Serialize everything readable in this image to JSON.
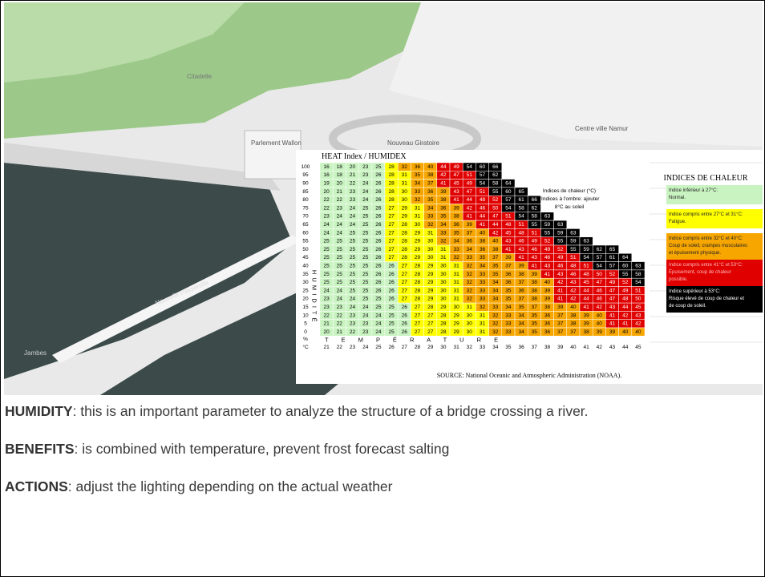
{
  "scene": {
    "labels": [
      "Citadelle",
      "Parlement Wallon",
      "Nouveau Giratoire",
      "Centre ville Namur",
      "Nouvelle Passerelle",
      "Jambes"
    ]
  },
  "heat_table": {
    "title": "HEAT Index / HUMIDEX",
    "humidity_unit": "%",
    "temperature_unit": "°C",
    "humidity_axis_label": "H U M I D I T É",
    "temperature_axis_label": "T E M P É R A T U R E",
    "temperatures": [
      21,
      22,
      23,
      24,
      25,
      26,
      27,
      28,
      29,
      30,
      31,
      32,
      33,
      34,
      35,
      36,
      37,
      38,
      39,
      40,
      41,
      42,
      43,
      44,
      45
    ],
    "rows": [
      {
        "humidity": 100,
        "values": [
          16,
          18,
          20,
          23,
          25,
          28,
          32,
          36,
          40,
          44,
          49,
          54,
          60,
          66
        ]
      },
      {
        "humidity": 95,
        "values": [
          16,
          18,
          21,
          23,
          26,
          28,
          31,
          35,
          38,
          42,
          47,
          51,
          57,
          62
        ]
      },
      {
        "humidity": 90,
        "values": [
          19,
          20,
          22,
          24,
          26,
          28,
          31,
          34,
          37,
          41,
          45,
          49,
          54,
          58,
          64
        ]
      },
      {
        "humidity": 85,
        "values": [
          20,
          21,
          23,
          24,
          26,
          28,
          30,
          33,
          36,
          39,
          43,
          47,
          51,
          55,
          60,
          65
        ]
      },
      {
        "humidity": 80,
        "values": [
          22,
          22,
          23,
          24,
          26,
          28,
          30,
          32,
          35,
          38,
          41,
          44,
          48,
          52,
          57,
          61,
          66
        ]
      },
      {
        "humidity": 75,
        "values": [
          22,
          23,
          24,
          25,
          26,
          27,
          29,
          31,
          34,
          36,
          39,
          42,
          46,
          50,
          54,
          58,
          62
        ]
      },
      {
        "humidity": 70,
        "values": [
          23,
          24,
          24,
          25,
          26,
          27,
          29,
          31,
          33,
          35,
          38,
          41,
          44,
          47,
          51,
          54,
          58,
          63
        ]
      },
      {
        "humidity": 65,
        "values": [
          24,
          24,
          24,
          25,
          26,
          27,
          28,
          30,
          32,
          34,
          36,
          39,
          41,
          44,
          48,
          51,
          55,
          59,
          63
        ]
      },
      {
        "humidity": 60,
        "values": [
          24,
          24,
          25,
          25,
          26,
          27,
          28,
          29,
          31,
          33,
          35,
          37,
          40,
          42,
          45,
          48,
          51,
          55,
          59,
          63
        ]
      },
      {
        "humidity": 55,
        "values": [
          25,
          25,
          25,
          25,
          26,
          27,
          28,
          29,
          30,
          32,
          34,
          36,
          38,
          40,
          43,
          46,
          49,
          52,
          55,
          59,
          63
        ]
      },
      {
        "humidity": 50,
        "values": [
          25,
          25,
          25,
          25,
          26,
          27,
          28,
          29,
          30,
          31,
          33,
          34,
          36,
          38,
          41,
          43,
          46,
          49,
          52,
          55,
          59,
          62,
          65
        ]
      },
      {
        "humidity": 45,
        "values": [
          25,
          25,
          25,
          25,
          26,
          27,
          28,
          29,
          30,
          31,
          32,
          33,
          35,
          37,
          39,
          41,
          43,
          46,
          49,
          51,
          54,
          57,
          61,
          64
        ]
      },
      {
        "humidity": 40,
        "values": [
          25,
          25,
          25,
          25,
          26,
          26,
          27,
          28,
          29,
          30,
          31,
          32,
          34,
          35,
          37,
          39,
          41,
          43,
          46,
          48,
          51,
          54,
          57,
          60,
          63
        ]
      },
      {
        "humidity": 35,
        "values": [
          25,
          25,
          25,
          25,
          26,
          26,
          27,
          28,
          29,
          30,
          31,
          32,
          33,
          35,
          36,
          38,
          39,
          41,
          43,
          46,
          48,
          50,
          52,
          55,
          58
        ]
      },
      {
        "humidity": 30,
        "values": [
          25,
          25,
          25,
          25,
          26,
          26,
          27,
          28,
          29,
          30,
          31,
          32,
          33,
          34,
          36,
          37,
          38,
          40,
          42,
          43,
          45,
          47,
          49,
          52,
          54
        ]
      },
      {
        "humidity": 25,
        "values": [
          24,
          24,
          25,
          25,
          26,
          26,
          27,
          28,
          29,
          30,
          31,
          32,
          33,
          34,
          35,
          36,
          38,
          39,
          41,
          42,
          44,
          46,
          47,
          49,
          51
        ]
      },
      {
        "humidity": 20,
        "values": [
          23,
          24,
          24,
          25,
          25,
          26,
          27,
          28,
          29,
          30,
          31,
          32,
          33,
          34,
          35,
          37,
          38,
          39,
          41,
          42,
          44,
          46,
          47,
          48,
          50
        ]
      },
      {
        "humidity": 15,
        "values": [
          23,
          23,
          24,
          24,
          25,
          25,
          26,
          27,
          28,
          29,
          30,
          31,
          32,
          33,
          34,
          35,
          37,
          38,
          39,
          40,
          41,
          42,
          43,
          44,
          45
        ]
      },
      {
        "humidity": 10,
        "values": [
          22,
          22,
          23,
          24,
          24,
          25,
          26,
          27,
          27,
          28,
          29,
          30,
          31,
          32,
          33,
          34,
          35,
          36,
          37,
          38,
          39,
          40,
          41,
          42,
          43
        ]
      },
      {
        "humidity": 5,
        "values": [
          21,
          22,
          23,
          23,
          24,
          25,
          26,
          27,
          27,
          28,
          29,
          30,
          31,
          32,
          33,
          34,
          35,
          36,
          37,
          38,
          39,
          40,
          41,
          41,
          42
        ]
      },
      {
        "humidity": 0,
        "values": [
          20,
          21,
          22,
          23,
          24,
          25,
          26,
          27,
          27,
          28,
          29,
          30,
          31,
          32,
          33,
          34,
          35,
          36,
          37,
          37,
          38,
          39,
          39,
          40,
          40
        ]
      }
    ],
    "note": [
      "Indices de chaleur (°C)",
      "*Indices à l'ombre: ajouter",
      "8°C au soleil"
    ],
    "legend_title": "INDICES DE CHALEUR",
    "legend": [
      {
        "min": null,
        "color": "#c9f3c1",
        "lines": [
          "Indice inférieur à 27°C:",
          "Normal."
        ]
      },
      {
        "min": 27,
        "color": "#ffff00",
        "lines": [
          "Indice compris entre 27°C et 31°C:",
          "Fatigue."
        ]
      },
      {
        "min": 32,
        "color": "#f7a600",
        "lines": [
          "Indice compris entre 32°C et 40°C:",
          "Coup de soleil, crampes musculaires",
          "et épuisement physique."
        ]
      },
      {
        "min": 41,
        "color": "#e00000",
        "lines": [
          "Indice compris entre 41°C et 53°C:",
          "Épuisement, coup de chaleur",
          "possible."
        ]
      },
      {
        "min": 54,
        "color": "#000000",
        "lines": [
          "Indice supérieur à 53°C:",
          "Risque élevé de coup de chaleur et",
          "de coup de soleil."
        ]
      }
    ],
    "source": "SOURCE: National Oceanic and Atmospheric Administration (NOAA)."
  },
  "paragraphs": [
    {
      "label": "HUMIDITY",
      "text": ": this is an important parameter to analyze the structure of a bridge crossing a river."
    },
    {
      "label": "BENEFITS",
      "text": ": is combined with temperature, prevent frost forecast salting"
    },
    {
      "label": "ACTIONS",
      "text": ": adjust the lighting depending on the actual weather"
    }
  ]
}
